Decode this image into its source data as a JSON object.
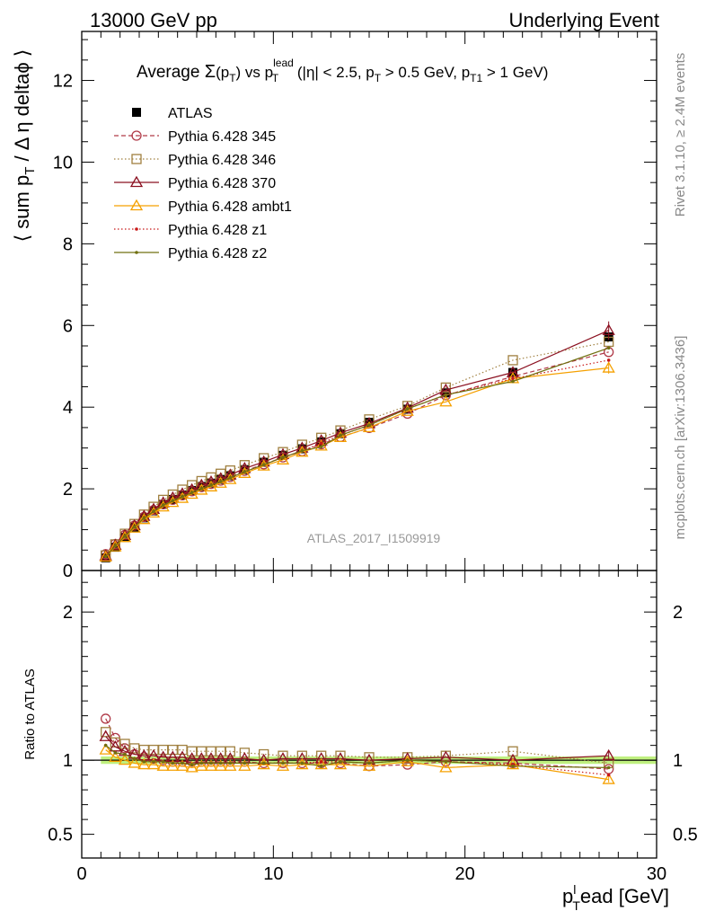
{
  "header": {
    "left": "13000 GeV pp",
    "right": "Underlying Event"
  },
  "side_labels": {
    "rivet": "Rivet 3.1.10, ≥ 2.4M events",
    "mcplots": "mcplots.cern.ch [arXiv:1306.3436]"
  },
  "watermark": "ATLAS_2017_I1509919",
  "colors": {
    "atlas": "#000000",
    "p345": "#b03a48",
    "p346": "#a08040",
    "p370": "#8b1020",
    "ambt1": "#f5a000",
    "z1": "#c81818",
    "z2": "#707010",
    "band": "#bff07f"
  },
  "chart_data": [
    {
      "type": "line",
      "title": "Average Σ(p_T) vs p_T^lead (|η| < 2.5, p_T > 0.5 GeV, p_T1 > 1 GeV)",
      "title_parts": {
        "a": "Average ",
        "sigma": "Σ",
        "b": "(p",
        "b_sub": "T",
        "c": ") vs p",
        "c_sup": "lead",
        "c_sub": "T",
        "d": " (|η| < 2.5, p",
        "d_sub": "T",
        "e": " > 0.5 GeV, p",
        "e_sub": "T1",
        "f": " > 1 GeV)"
      },
      "ylabel": "⟨ sum p_T / Δ η deltaϕ ⟩",
      "ylabel_parts": {
        "a": "⟨ sum p",
        "a_sub": "T",
        "b": " / Δ η deltaϕ ⟩"
      },
      "xlim": [
        0,
        30
      ],
      "ylim": [
        0,
        13.2
      ],
      "yticks": [
        0,
        2,
        4,
        6,
        8,
        10,
        12
      ],
      "legend_position": "top-left",
      "x": [
        1.25,
        1.75,
        2.25,
        2.75,
        3.25,
        3.75,
        4.25,
        4.75,
        5.25,
        5.75,
        6.25,
        6.75,
        7.25,
        7.75,
        8.5,
        9.5,
        10.5,
        11.5,
        12.5,
        13.5,
        15.0,
        17.0,
        19.0,
        22.5,
        27.5
      ],
      "series": [
        {
          "key": "atlas",
          "name": "ATLAS",
          "marker": "filled-square",
          "line": "none",
          "values": [
            0.31,
            0.57,
            0.81,
            1.06,
            1.29,
            1.46,
            1.62,
            1.74,
            1.85,
            1.96,
            2.06,
            2.14,
            2.23,
            2.32,
            2.47,
            2.65,
            2.82,
            2.98,
            3.15,
            3.35,
            3.63,
            3.95,
            4.35,
            4.85,
            5.72
          ]
        },
        {
          "key": "p345",
          "name": "Pythia 6.428 345",
          "marker": "open-circle",
          "line": "dashed",
          "values": [
            0.4,
            0.65,
            0.87,
            1.1,
            1.31,
            1.48,
            1.62,
            1.73,
            1.84,
            1.94,
            2.04,
            2.12,
            2.2,
            2.29,
            2.44,
            2.6,
            2.77,
            2.92,
            3.09,
            3.27,
            3.49,
            3.84,
            4.29,
            4.75,
            5.35
          ]
        },
        {
          "key": "p346",
          "name": "Pythia 6.428 346",
          "marker": "open-square",
          "line": "dotted",
          "values": [
            0.37,
            0.64,
            0.9,
            1.14,
            1.37,
            1.56,
            1.73,
            1.86,
            1.98,
            2.09,
            2.19,
            2.28,
            2.37,
            2.45,
            2.58,
            2.75,
            2.9,
            3.08,
            3.25,
            3.43,
            3.7,
            4.03,
            4.48,
            5.15,
            5.6
          ]
        },
        {
          "key": "p370",
          "name": "Pythia 6.428 370",
          "marker": "open-triangle",
          "line": "solid",
          "values": [
            0.36,
            0.62,
            0.86,
            1.1,
            1.33,
            1.5,
            1.66,
            1.78,
            1.88,
            1.98,
            2.09,
            2.17,
            2.25,
            2.34,
            2.5,
            2.66,
            2.84,
            3.0,
            3.18,
            3.37,
            3.6,
            3.98,
            4.42,
            4.85,
            5.88
          ]
        },
        {
          "key": "ambt1",
          "name": "Pythia 6.428 ambt1",
          "marker": "open-triangle",
          "line": "solid",
          "values": [
            0.33,
            0.58,
            0.81,
            1.04,
            1.25,
            1.41,
            1.56,
            1.67,
            1.77,
            1.87,
            1.97,
            2.05,
            2.14,
            2.23,
            2.38,
            2.56,
            2.71,
            2.9,
            3.05,
            3.26,
            3.5,
            3.9,
            4.13,
            4.7,
            4.96
          ]
        },
        {
          "key": "z1",
          "name": "Pythia 6.428 z1",
          "marker": "small-dot",
          "line": "dotted",
          "values": [
            0.34,
            0.6,
            0.84,
            1.07,
            1.28,
            1.45,
            1.6,
            1.71,
            1.81,
            1.91,
            2.01,
            2.09,
            2.18,
            2.27,
            2.42,
            2.59,
            2.77,
            2.93,
            3.12,
            3.31,
            3.56,
            3.96,
            4.3,
            4.7,
            5.15
          ]
        },
        {
          "key": "z2",
          "name": "Pythia 6.428 z2",
          "marker": "small-dot",
          "line": "solid",
          "values": [
            0.34,
            0.6,
            0.84,
            1.07,
            1.28,
            1.45,
            1.6,
            1.71,
            1.81,
            1.91,
            2.01,
            2.09,
            2.18,
            2.27,
            2.42,
            2.59,
            2.77,
            2.93,
            3.03,
            3.31,
            3.56,
            3.96,
            4.3,
            4.63,
            5.45
          ]
        }
      ]
    },
    {
      "type": "line",
      "title": "",
      "ylabel": "Ratio to ATLAS",
      "xlabel": "p_T^lead [GeV]",
      "xlabel_parts": {
        "a": "p",
        "a_sup": "l",
        "a_sub": "T",
        "b": "ead [GeV]"
      },
      "xlim": [
        0,
        30
      ],
      "ylim": [
        0.34,
        2.28
      ],
      "yticks": [
        0.5,
        1,
        2
      ],
      "ytick_labels": [
        "0.5",
        "1",
        "2"
      ],
      "xticks": [
        0,
        10,
        20,
        30
      ],
      "xtick_labels": [
        "0",
        "10",
        "20",
        "30"
      ],
      "reference_line": 1,
      "band": [
        0.975,
        1.025
      ],
      "x": [
        1.25,
        1.75,
        2.25,
        2.75,
        3.25,
        3.75,
        4.25,
        4.75,
        5.25,
        5.75,
        6.25,
        6.75,
        7.25,
        7.75,
        8.5,
        9.5,
        10.5,
        11.5,
        12.5,
        13.5,
        15.0,
        17.0,
        19.0,
        22.5,
        27.5
      ],
      "series": [
        {
          "key": "p345",
          "name": "Pythia 6.428 345",
          "marker": "open-circle",
          "line": "dashed",
          "values": [
            1.28,
            1.15,
            1.08,
            1.04,
            1.02,
            1.01,
            1.0,
            0.99,
            0.99,
            0.99,
            0.99,
            0.99,
            0.99,
            0.99,
            0.99,
            0.98,
            0.98,
            0.98,
            0.98,
            0.98,
            0.96,
            0.97,
            0.99,
            0.98,
            0.94
          ]
        },
        {
          "key": "p346",
          "name": "Pythia 6.428 346",
          "marker": "open-square",
          "line": "dotted",
          "values": [
            1.19,
            1.12,
            1.11,
            1.08,
            1.07,
            1.07,
            1.07,
            1.07,
            1.07,
            1.06,
            1.06,
            1.06,
            1.06,
            1.06,
            1.05,
            1.04,
            1.03,
            1.03,
            1.03,
            1.03,
            1.02,
            1.02,
            1.03,
            1.06,
            0.98
          ]
        },
        {
          "key": "p370",
          "name": "Pythia 6.428 370",
          "marker": "open-triangle",
          "line": "solid",
          "values": [
            1.16,
            1.09,
            1.06,
            1.04,
            1.03,
            1.03,
            1.02,
            1.02,
            1.02,
            1.01,
            1.01,
            1.01,
            1.01,
            1.01,
            1.01,
            1.0,
            1.01,
            1.01,
            1.01,
            1.01,
            1.0,
            1.01,
            1.02,
            1.0,
            1.03
          ]
        },
        {
          "key": "ambt1",
          "name": "Pythia 6.428 ambt1",
          "marker": "open-triangle",
          "line": "solid",
          "values": [
            1.07,
            1.02,
            1.0,
            0.98,
            0.97,
            0.97,
            0.96,
            0.96,
            0.96,
            0.95,
            0.96,
            0.96,
            0.96,
            0.96,
            0.96,
            0.97,
            0.96,
            0.97,
            0.97,
            0.97,
            0.96,
            0.99,
            0.95,
            0.97,
            0.87
          ]
        },
        {
          "key": "z1",
          "name": "Pythia 6.428 z1",
          "marker": "small-dot",
          "line": "dotted",
          "values": [
            1.1,
            1.05,
            1.04,
            1.01,
            0.99,
            0.99,
            0.99,
            0.98,
            0.98,
            0.97,
            0.98,
            0.98,
            0.98,
            0.98,
            0.98,
            0.98,
            0.98,
            0.98,
            0.99,
            0.99,
            0.98,
            1.0,
            0.99,
            0.97,
            0.9
          ]
        },
        {
          "key": "z2",
          "name": "Pythia 6.428 z2",
          "marker": "small-dot",
          "line": "solid",
          "values": [
            1.1,
            1.05,
            1.04,
            1.01,
            0.99,
            0.99,
            0.99,
            0.98,
            0.98,
            0.97,
            0.98,
            0.98,
            0.98,
            0.98,
            0.98,
            0.98,
            0.98,
            0.98,
            0.96,
            0.99,
            0.98,
            1.0,
            0.99,
            0.96,
            0.95
          ]
        }
      ]
    }
  ]
}
